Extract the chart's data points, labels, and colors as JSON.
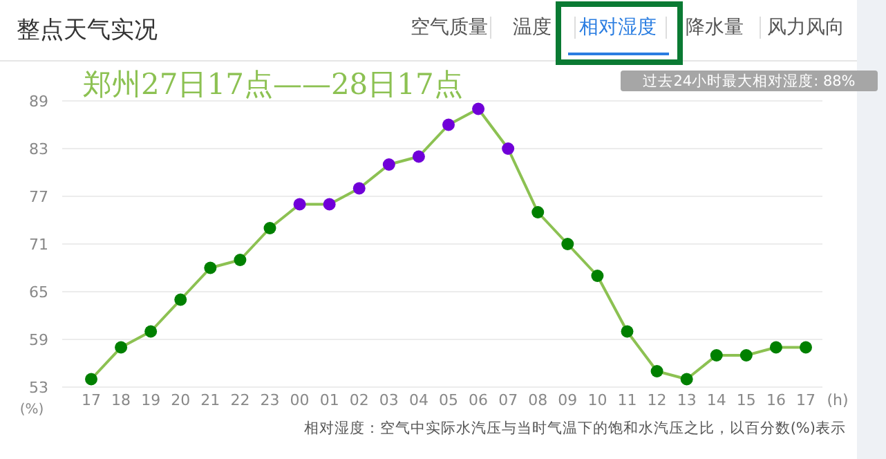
{
  "chart_data": {
    "type": "line",
    "title": "整点天气实况",
    "subtitle": "郑州27日17点——28日17点",
    "ylabel": "(%)",
    "xlabel": "(h)",
    "annotations": [
      "空气质量",
      "温度",
      "相对湿度",
      "降水量",
      "风力风向",
      "过去24小时最大相对湿度: 88%",
      "相对湿度：空气中实际水汽压与当时气温下的饱和水汽压之比，以百分数(%)表示"
    ],
    "categories": [
      "17",
      "18",
      "19",
      "20",
      "21",
      "22",
      "23",
      "00",
      "01",
      "02",
      "03",
      "04",
      "05",
      "06",
      "07",
      "08",
      "09",
      "10",
      "11",
      "12",
      "13",
      "14",
      "15",
      "16",
      "17"
    ],
    "series": [
      {
        "color": "#8cc152",
        "values": [
          54,
          58,
          60,
          64,
          68,
          69,
          73,
          76,
          76,
          78,
          81,
          82,
          86,
          88,
          83,
          75,
          71,
          67,
          60,
          55,
          54,
          57,
          57,
          58,
          58
        ],
        "colors": [
          "#008000",
          "#008000",
          "#008000",
          "#008000",
          "#008000",
          "#008000",
          "#008000",
          "#7000d8",
          "#7000d8",
          "#7000d8",
          "#7000d8",
          "#7000d8",
          "#7000d8",
          "#7000d8",
          "#7000d8",
          "#008000",
          "#008000",
          "#008000",
          "#008000",
          "#008000",
          "#008000",
          "#008000",
          "#008000",
          "#008000",
          "#008000"
        ]
      }
    ],
    "ylim": [
      53,
      89
    ],
    "yticks": [
      53,
      59,
      65,
      71,
      77,
      83,
      89
    ],
    "grid": "y",
    "marker": "circle",
    "line_style": "solid"
  }
}
